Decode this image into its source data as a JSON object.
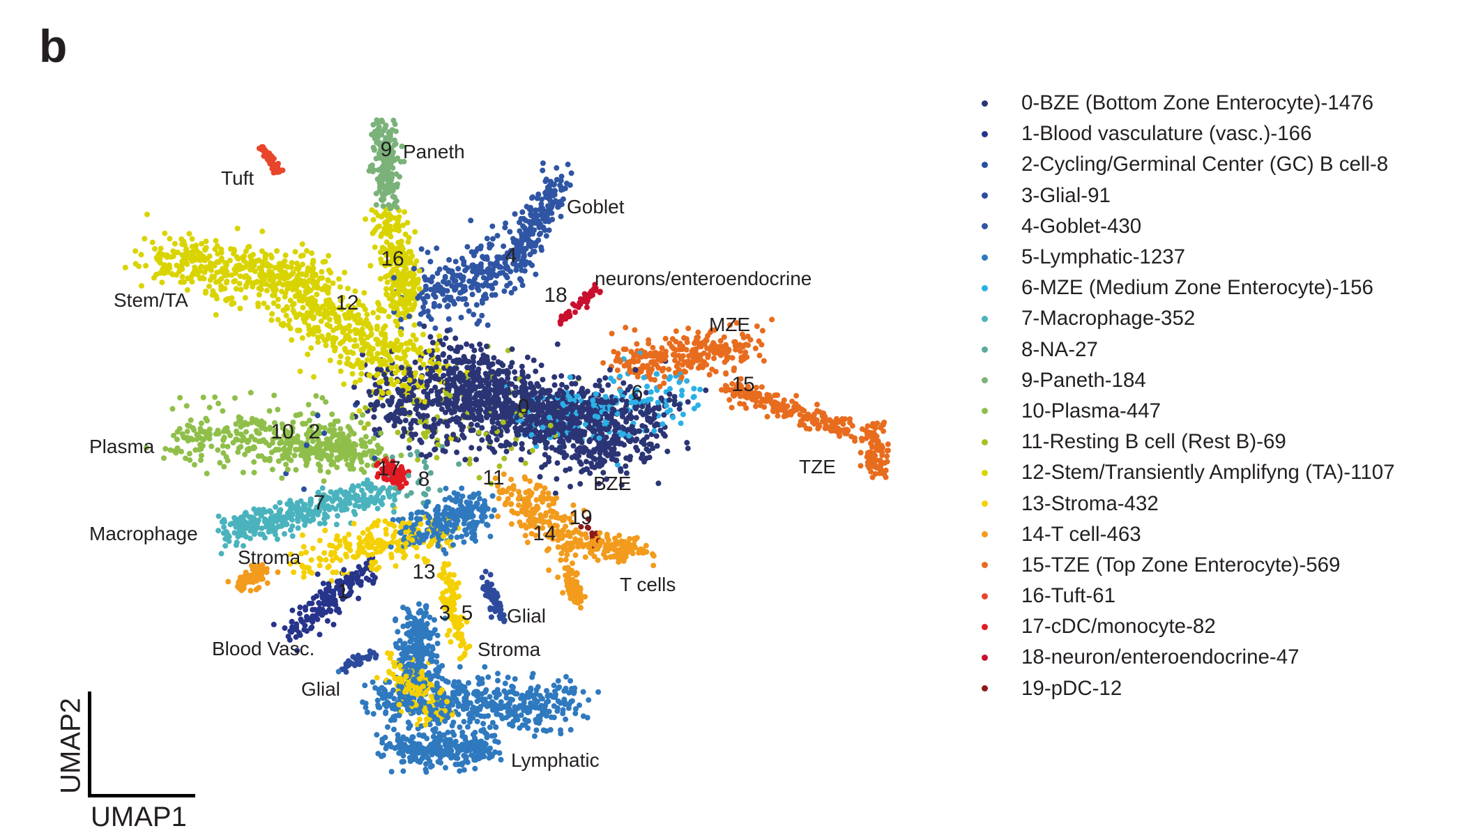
{
  "panel_letter": "b",
  "chart_data": {
    "type": "scatter",
    "xlabel": "UMAP1",
    "ylabel": "UMAP2",
    "xlim": [
      0,
      80
    ],
    "ylim": [
      0,
      70
    ],
    "grid": false,
    "legend_position": "right",
    "clusters": [
      {
        "id": 0,
        "legend": "0-BZE (Bottom Zone Enterocyte)-1476",
        "count": 1476,
        "color": "#2b3575",
        "segments": [
          [
            24,
            40,
            54,
            37,
            3.5
          ],
          [
            31,
            44,
            48,
            34,
            3
          ]
        ]
      },
      {
        "id": 1,
        "legend": "1-Blood vasculature (vasc.)-166",
        "count": 166,
        "color": "#27348b",
        "segments": [
          [
            15,
            15.5,
            23,
            22,
            1.4
          ]
        ]
      },
      {
        "id": 2,
        "legend": "2-Cycling/Germinal Center (GC) B cell-8",
        "count": 8,
        "color": "#2a4fa0",
        "segments": [
          [
            14,
            36,
            22,
            35,
            3
          ]
        ]
      },
      {
        "id": 3,
        "legend": "3-Glial-91",
        "count": 91,
        "color": "#2d4a9c",
        "segments": [
          [
            35,
            21,
            37,
            16.5,
            0.6
          ],
          [
            20,
            11.5,
            23.5,
            13,
            0.4
          ]
        ]
      },
      {
        "id": 4,
        "legend": "4-Goblet-430",
        "count": 430,
        "color": "#2f55a4",
        "segments": [
          [
            29,
            50,
            38,
            55,
            3
          ],
          [
            38,
            54,
            43,
            63,
            1.5
          ]
        ]
      },
      {
        "id": 5,
        "legend": "5-Lymphatic-1237",
        "count": 1237,
        "color": "#2f79bf",
        "segments": [
          [
            24,
            8,
            44,
            7.5,
            2.4
          ],
          [
            25,
            3,
            36,
            3,
            1.4
          ],
          [
            28,
            17,
            28,
            10,
            1.5
          ],
          [
            27,
            26,
            35,
            28,
            2
          ]
        ]
      },
      {
        "id": 6,
        "legend": "6-MZE (Medium Zone Enterocyte)-156",
        "count": 156,
        "color": "#2bb0e6",
        "segments": [
          [
            40,
            38,
            56,
            40,
            3
          ]
        ]
      },
      {
        "id": 7,
        "legend": "7-Macrophage-352",
        "count": 352,
        "color": "#4ab3bd",
        "segments": [
          [
            8,
            26,
            25,
            30,
            1.5
          ]
        ]
      },
      {
        "id": 8,
        "legend": "8-NA-27",
        "count": 27,
        "color": "#5aa99a",
        "segments": [
          [
            27,
            32,
            29,
            31,
            3
          ]
        ]
      },
      {
        "id": 9,
        "legend": "9-Paneth-184",
        "count": 184,
        "color": "#7ab27a",
        "segments": [
          [
            24.5,
            69,
            25,
            60.5,
            1.2
          ]
        ]
      },
      {
        "id": 10,
        "legend": "10-Plasma-447",
        "count": 447,
        "color": "#8fbf4a",
        "segments": [
          [
            3,
            36,
            22,
            35,
            2.5
          ],
          [
            14,
            35,
            24,
            34,
            1.5
          ]
        ]
      },
      {
        "id": 11,
        "legend": "11-Resting B cell (Rest B)-69",
        "count": 69,
        "color": "#a8c021",
        "segments": [
          [
            26,
            40,
            40,
            36,
            5
          ]
        ]
      },
      {
        "id": 12,
        "legend": "12-Stem/Transiently Amplifyng (TA)-1107",
        "count": 1107,
        "color": "#d9d400",
        "segments": [
          [
            0.5,
            55,
            17,
            52,
            2.5
          ],
          [
            14,
            52,
            28,
            42,
            3.5
          ],
          [
            25,
            59,
            27,
            49,
            1.5
          ]
        ]
      },
      {
        "id": 13,
        "legend": "13-Stroma-432",
        "count": 432,
        "color": "#f5d000",
        "segments": [
          [
            16,
            22.5,
            31,
            26,
            2
          ],
          [
            31,
            22,
            33,
            13,
            0.8
          ],
          [
            26,
            12,
            30,
            6,
            1.8
          ]
        ]
      },
      {
        "id": 14,
        "legend": "14-T cell-463",
        "count": 463,
        "color": "#f29b1c",
        "segments": [
          [
            38,
            30,
            45,
            25,
            2
          ],
          [
            45,
            24.5,
            52,
            24,
            1
          ],
          [
            44,
            22,
            45,
            18.5,
            0.7
          ],
          [
            9,
            20,
            12,
            22,
            0.8
          ]
        ]
      },
      {
        "id": 15,
        "legend": "15-TZE (Top Zone Enterocyte)-569",
        "count": 569,
        "color": "#e86c1e",
        "segments": [
          [
            49,
            43.5,
            63,
            45.5,
            2
          ],
          [
            61,
            41,
            74,
            36.5,
            1
          ],
          [
            76,
            37,
            76.5,
            32.5,
            1.2
          ]
        ]
      },
      {
        "id": 16,
        "legend": "16-Tuft-61",
        "count": 61,
        "color": "#e8452c",
        "segments": [
          [
            11.5,
            66.5,
            13.5,
            63.8,
            0.3
          ]
        ]
      },
      {
        "id": 17,
        "legend": "17-cDC/monocyte-82",
        "count": 82,
        "color": "#e21b23",
        "segments": [
          [
            24.5,
            32.5,
            26.5,
            31.5,
            0.8
          ]
        ]
      },
      {
        "id": 18,
        "legend": "18-neuron/enteroendocrine-47",
        "count": 47,
        "color": "#c8102e",
        "segments": [
          [
            43,
            48,
            47.2,
            51.5,
            0.4
          ]
        ]
      },
      {
        "id": 19,
        "legend": "19-pDC-12",
        "count": 12,
        "color": "#8b1a1a",
        "segments": [
          [
            45.5,
            27,
            47.8,
            23.5,
            0.4
          ]
        ]
      }
    ],
    "annotations": {
      "tuft": "Tuft",
      "paneth": "Paneth",
      "goblet": "Goblet",
      "neurons": "neurons/enteroendocrine",
      "stem": "Stem/TA",
      "mze": "MZE",
      "tze": "TZE",
      "bze": "BZE",
      "plasma": "Plasma",
      "macrophage": "Macrophage",
      "stroma_a": "Stroma",
      "tcells": "T cells",
      "glial_a": "Glial",
      "stroma_b": "Stroma",
      "blood": "Blood Vasc.",
      "glial_b": "Glial",
      "lymphatic": "Lymphatic"
    },
    "cluster_numbers": [
      "9",
      "16",
      "4",
      "18",
      "12",
      "0",
      "6",
      "15",
      "10",
      "2",
      "17",
      "8",
      "11",
      "7",
      "19",
      "14",
      "13",
      "1",
      "3",
      "5"
    ]
  }
}
